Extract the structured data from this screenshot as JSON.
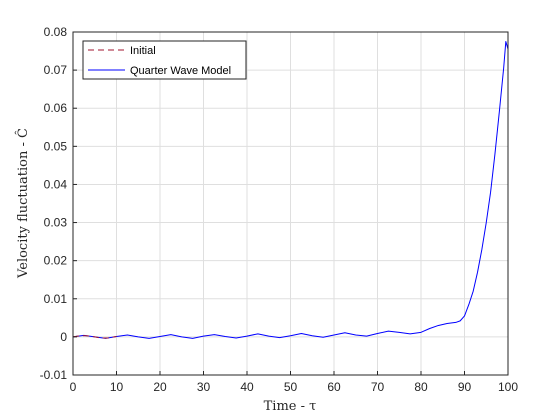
{
  "chart_data": {
    "type": "line",
    "title": "",
    "xlabel": "Time - τ",
    "ylabel": "Velocity fluctuation - Ĉ",
    "xlim": [
      0,
      100
    ],
    "ylim": [
      -0.01,
      0.08
    ],
    "xticks": [
      "0",
      "10",
      "20",
      "30",
      "40",
      "50",
      "60",
      "70",
      "80",
      "90",
      "100"
    ],
    "yticks": [
      "-0.01",
      "0",
      "0.01",
      "0.02",
      "0.03",
      "0.04",
      "0.05",
      "0.06",
      "0.07",
      "0.08"
    ],
    "grid": true,
    "legend_position": "top-left",
    "series": [
      {
        "name": "Initial",
        "style": "dashed",
        "color": "#a2142f",
        "x": [
          0,
          1,
          2,
          3,
          4,
          5,
          6,
          7,
          8,
          9,
          10
        ],
        "y": [
          0.0,
          0.0002,
          0.0003,
          0.0003,
          0.0002,
          0.0,
          -0.0002,
          -0.0003,
          -0.0003,
          -0.0001,
          0.0001
        ]
      },
      {
        "name": "Quarter Wave Model",
        "style": "solid",
        "color": "#0000ff",
        "x": [
          0,
          2.5,
          5,
          7.5,
          10,
          12.5,
          15,
          17.5,
          20,
          22.5,
          25,
          27.5,
          30,
          32.5,
          35,
          37.5,
          40,
          42.5,
          45,
          47.5,
          50,
          52.5,
          55,
          57.5,
          60,
          62.5,
          65,
          67.5,
          70,
          72.5,
          75,
          77.5,
          80,
          82,
          84,
          86,
          88,
          89,
          90,
          91,
          92,
          93,
          94,
          95,
          96,
          97,
          98,
          99,
          99.5,
          100
        ],
        "y": [
          0.0,
          0.0004,
          0.0,
          -0.0004,
          0.0001,
          0.0005,
          0.0,
          -0.0004,
          0.0001,
          0.0006,
          0.0,
          -0.0004,
          0.0002,
          0.0006,
          0.0001,
          -0.0003,
          0.0002,
          0.0008,
          0.0002,
          -0.0002,
          0.0003,
          0.0009,
          0.0003,
          -0.0001,
          0.0005,
          0.0011,
          0.0005,
          0.0002,
          0.0009,
          0.0015,
          0.0012,
          0.0008,
          0.0012,
          0.0022,
          0.003,
          0.0035,
          0.0038,
          0.0042,
          0.0055,
          0.0085,
          0.012,
          0.017,
          0.023,
          0.03,
          0.038,
          0.048,
          0.059,
          0.0705,
          0.0775,
          0.0755
        ]
      }
    ]
  }
}
